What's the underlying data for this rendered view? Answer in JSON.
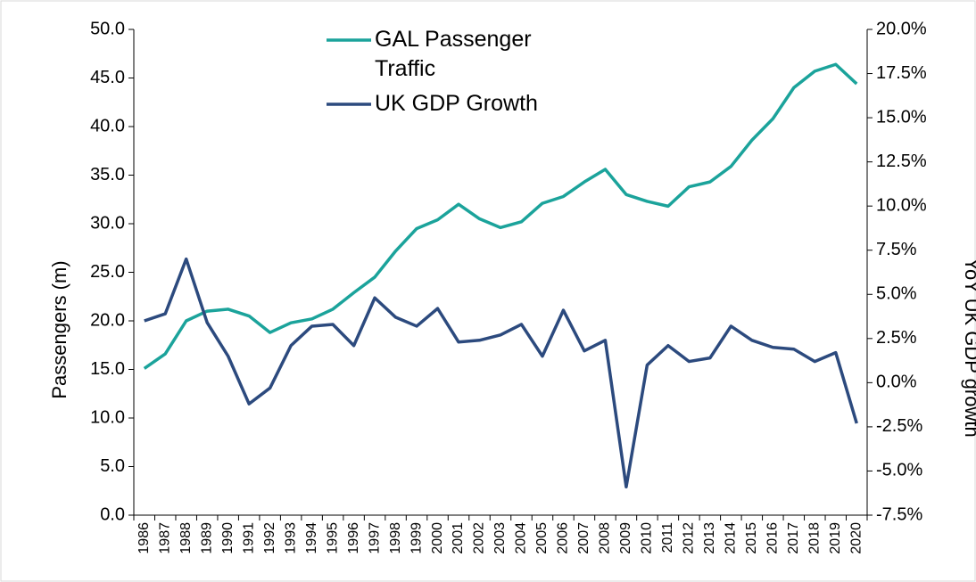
{
  "chart_data": {
    "type": "line",
    "categories": [
      "1986",
      "1987",
      "1988",
      "1989",
      "1990",
      "1991",
      "1992",
      "1993",
      "1994",
      "1995",
      "1996",
      "1997",
      "1998",
      "1999",
      "2000",
      "2001",
      "2002",
      "2003",
      "2004",
      "2005",
      "2006",
      "2007",
      "2008",
      "2009",
      "2010",
      "2011",
      "2012",
      "2013",
      "2014",
      "2015",
      "2016",
      "2017",
      "2018",
      "2019",
      "2020"
    ],
    "series": [
      {
        "name": "GAL Passenger Traffic",
        "color": "#1ba39b",
        "values": [
          15.1,
          16.6,
          20.0,
          21.0,
          21.2,
          20.5,
          18.8,
          19.8,
          20.2,
          21.2,
          22.9,
          24.5,
          27.2,
          29.5,
          30.4,
          32.0,
          30.5,
          29.6,
          30.2,
          32.1,
          32.8,
          34.3,
          35.6,
          33.0,
          32.3,
          31.8,
          33.8,
          34.3,
          35.9,
          38.6,
          40.8,
          44.0,
          45.7,
          46.4,
          44.4
        ]
      },
      {
        "name": "UK GDP Growth",
        "color": "#2c4a7e",
        "axis": "y2",
        "values": [
          3.5,
          3.9,
          7.0,
          3.4,
          1.5,
          -1.2,
          -0.3,
          2.1,
          3.2,
          3.3,
          2.1,
          4.8,
          3.7,
          3.2,
          4.2,
          2.3,
          2.4,
          2.7,
          3.3,
          1.5,
          4.1,
          1.8,
          2.4,
          -5.9,
          1.0,
          2.1,
          1.2,
          1.4,
          3.2,
          2.4,
          2.0,
          1.9,
          1.2,
          1.7,
          -2.3
        ]
      }
    ],
    "y_label": "Passengers (m)",
    "y2_label": "YoY UK GDP growth",
    "ylim": [
      0,
      50
    ],
    "yticks": [
      {
        "value": 0,
        "label": "0.0"
      },
      {
        "value": 5,
        "label": "5.0"
      },
      {
        "value": 10,
        "label": "10.0"
      },
      {
        "value": 15,
        "label": "15.0"
      },
      {
        "value": 20,
        "label": "20.0"
      },
      {
        "value": 25,
        "label": "25.0"
      },
      {
        "value": 30,
        "label": "30.0"
      },
      {
        "value": 35,
        "label": "35.0"
      },
      {
        "value": 40,
        "label": "40.0"
      },
      {
        "value": 45,
        "label": "45.0"
      },
      {
        "value": 50,
        "label": "50.0"
      }
    ],
    "y2lim": [
      -7.5,
      20
    ],
    "y2ticks": [
      {
        "value": -7.5,
        "label": "-7.5%"
      },
      {
        "value": -5,
        "label": "-5.0%"
      },
      {
        "value": -2.5,
        "label": "-2.5%"
      },
      {
        "value": 0,
        "label": "0.0%"
      },
      {
        "value": 2.5,
        "label": "2.5%"
      },
      {
        "value": 5,
        "label": "5.0%"
      },
      {
        "value": 7.5,
        "label": "7.5%"
      },
      {
        "value": 10,
        "label": "10.0%"
      },
      {
        "value": 12.5,
        "label": "12.5%"
      },
      {
        "value": 15,
        "label": "15.0%"
      },
      {
        "value": 17.5,
        "label": "17.5%"
      },
      {
        "value": 20,
        "label": "20.0%"
      }
    ]
  }
}
